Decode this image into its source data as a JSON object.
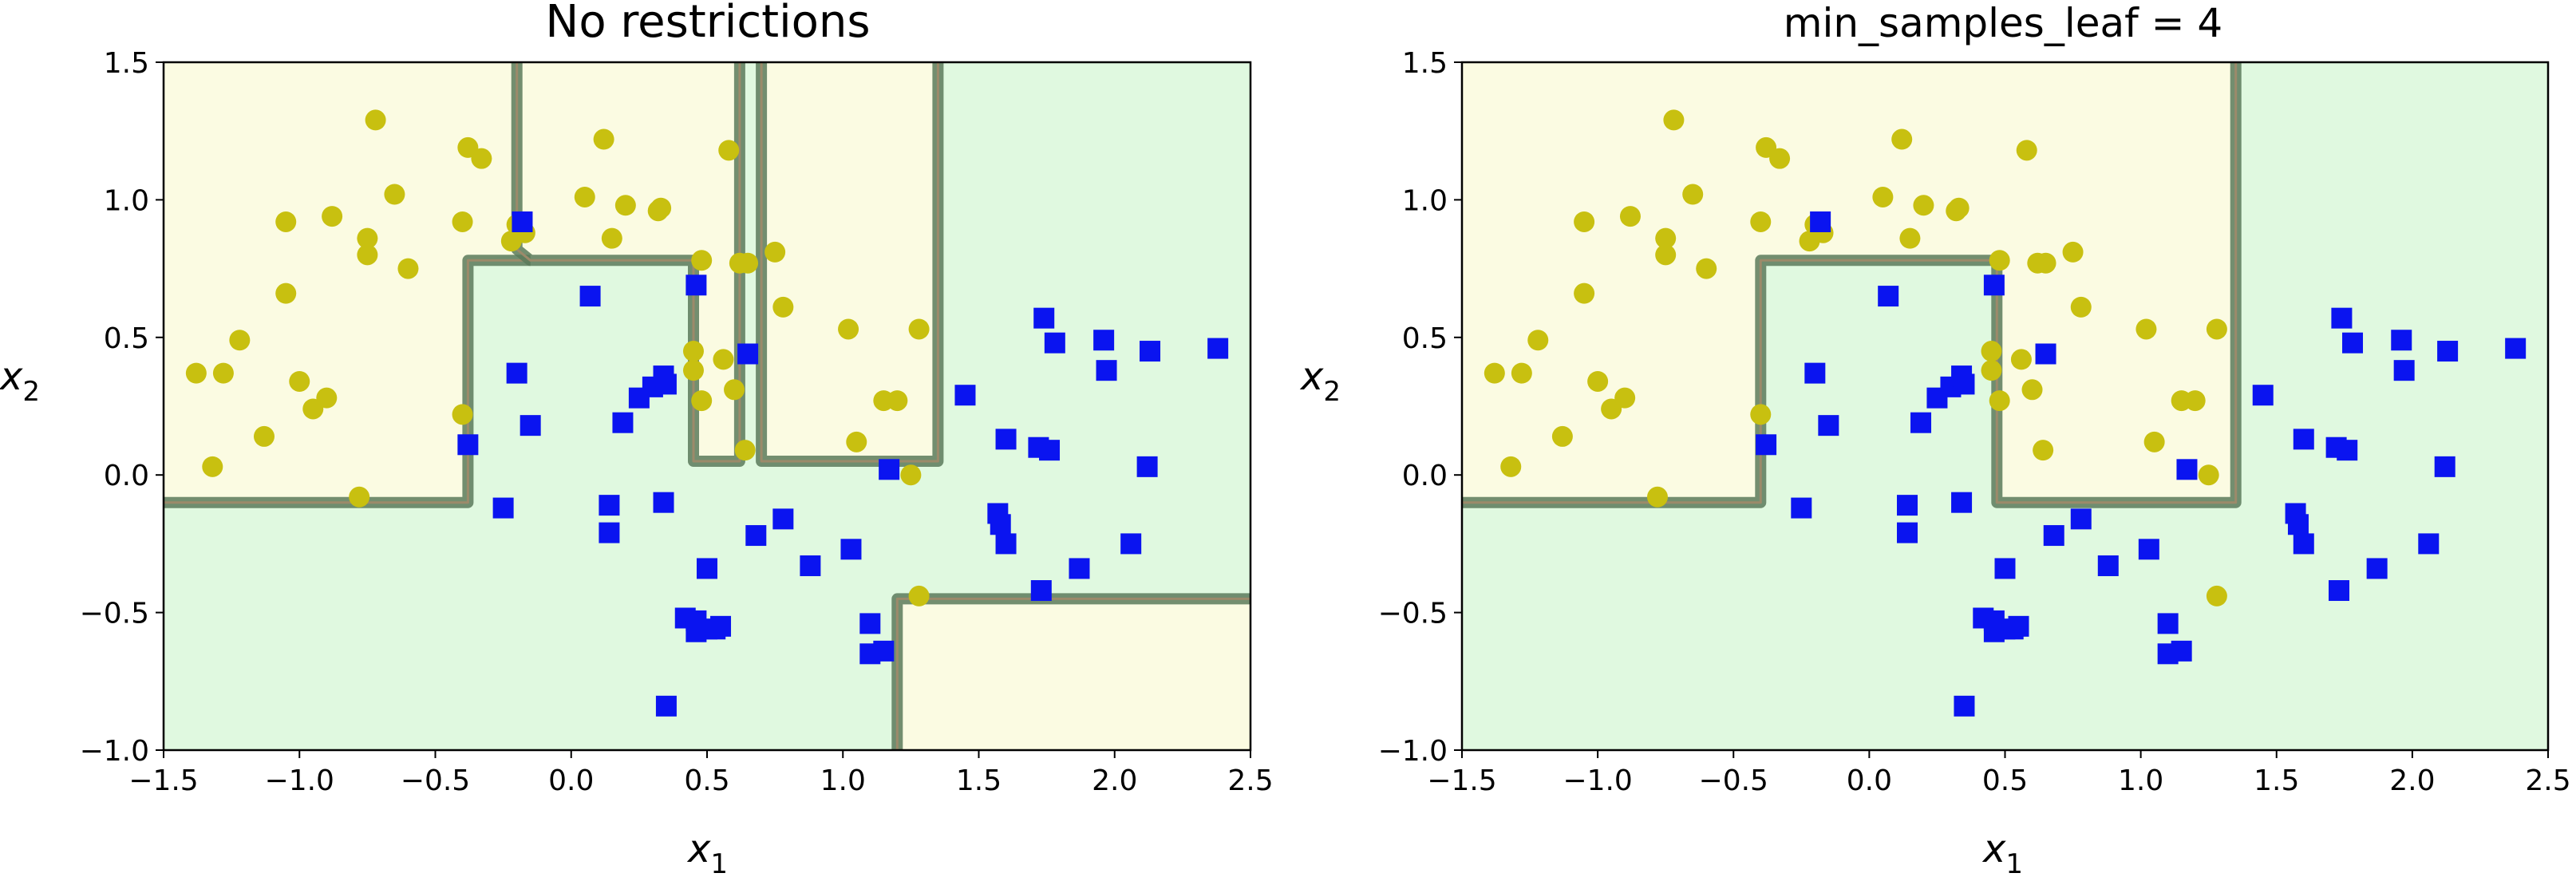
{
  "colors": {
    "class_yellow_region": "#fbfbe2",
    "class_green_region": "#e0f9e0",
    "boundary": "#5a7a5a",
    "boundary_core": "#9c8a6a",
    "point_yellow": "#c8c010",
    "point_blue": "#0a14f0"
  },
  "chart_data": [
    {
      "type": "scatter",
      "title": "No restrictions",
      "xlabel": "x",
      "xlabel_sub": "1",
      "ylabel": "x",
      "ylabel_sub": "2",
      "xlim": [
        -1.5,
        2.5
      ],
      "ylim": [
        -1.0,
        1.5
      ],
      "xticks": [
        -1.5,
        -1.0,
        -0.5,
        0.0,
        0.5,
        1.0,
        1.5,
        2.0,
        2.5
      ],
      "xtick_labels": [
        "−1.5",
        "−1.0",
        "−0.5",
        "0.0",
        "0.5",
        "1.0",
        "1.5",
        "2.0",
        "2.5"
      ],
      "yticks": [
        1.5,
        1.0,
        0.5,
        0.0,
        -0.5,
        -1.0
      ],
      "ytick_labels": [
        "1.5",
        "1.0",
        "0.5",
        "0.0",
        "−0.5",
        "−1.0"
      ],
      "regions": [
        {
          "class": "yellow",
          "polygon": [
            [
              -1.5,
              1.5
            ],
            [
              -0.2,
              1.5
            ],
            [
              -0.2,
              0.8
            ],
            [
              -0.38,
              0.78
            ],
            [
              -0.38,
              -0.1
            ],
            [
              -1.5,
              -0.1
            ]
          ]
        },
        {
          "class": "yellow",
          "polygon": [
            [
              -0.2,
              1.5
            ],
            [
              0.62,
              1.5
            ],
            [
              0.62,
              0.05
            ],
            [
              0.45,
              0.05
            ],
            [
              0.45,
              0.78
            ],
            [
              -0.15,
              0.78
            ],
            [
              -0.2,
              0.8
            ]
          ]
        },
        {
          "class": "yellow",
          "polygon": [
            [
              0.7,
              1.5
            ],
            [
              1.35,
              1.5
            ],
            [
              1.35,
              0.05
            ],
            [
              0.7,
              0.05
            ]
          ]
        },
        {
          "class": "yellow",
          "polygon": [
            [
              1.2,
              -0.45
            ],
            [
              2.5,
              -0.45
            ],
            [
              2.5,
              -1.0
            ],
            [
              1.2,
              -1.0
            ]
          ]
        }
      ],
      "boundaries": [
        [
          [
            -1.5,
            -0.1
          ],
          [
            -0.38,
            -0.1
          ],
          [
            -0.38,
            0.78
          ],
          [
            -0.15,
            0.78
          ]
        ],
        [
          [
            -0.2,
            1.5
          ],
          [
            -0.2,
            0.82
          ],
          [
            -0.15,
            0.78
          ],
          [
            0.45,
            0.78
          ],
          [
            0.45,
            0.05
          ],
          [
            0.62,
            0.05
          ],
          [
            0.62,
            1.5
          ]
        ],
        [
          [
            0.7,
            1.5
          ],
          [
            0.7,
            0.05
          ],
          [
            1.35,
            0.05
          ],
          [
            1.35,
            1.5
          ]
        ],
        [
          [
            1.2,
            -1.0
          ],
          [
            1.2,
            -0.45
          ],
          [
            2.5,
            -0.45
          ]
        ]
      ],
      "series": [
        {
          "marker": "circle",
          "color": "#c8c010",
          "x": [
            -1.38,
            -1.32,
            -1.22,
            -1.28,
            -1.05,
            -1.05,
            -1.0,
            -0.95,
            -0.9,
            -0.88,
            -0.75,
            -0.75,
            -0.72,
            -0.65,
            -0.6,
            -0.78,
            -1.13,
            -0.4,
            -0.38,
            -0.33,
            -0.4,
            -0.22,
            -0.2,
            -0.17,
            0.05,
            0.12,
            0.15,
            0.2,
            0.32,
            0.33,
            0.48,
            0.45,
            0.45,
            0.48,
            0.56,
            0.58,
            0.62,
            0.6,
            0.64,
            0.65,
            0.75,
            0.78,
            1.02,
            1.05,
            1.15,
            1.2,
            1.28,
            1.28,
            1.25
          ],
          "y": [
            0.37,
            0.03,
            0.49,
            0.37,
            0.66,
            0.92,
            0.34,
            0.24,
            0.28,
            0.94,
            0.86,
            0.8,
            1.29,
            1.02,
            0.75,
            -0.08,
            0.14,
            0.22,
            1.19,
            1.15,
            0.92,
            0.85,
            0.91,
            0.88,
            1.01,
            1.22,
            0.86,
            0.98,
            0.96,
            0.97,
            0.78,
            0.38,
            0.45,
            0.27,
            0.42,
            1.18,
            0.77,
            0.31,
            0.09,
            0.77,
            0.81,
            0.61,
            0.53,
            0.12,
            0.27,
            0.27,
            0.53,
            -0.44,
            0.0
          ],
          "series_hint": "class 0"
        },
        {
          "marker": "square",
          "color": "#0a14f0",
          "x": [
            -0.38,
            -0.25,
            -0.18,
            -0.15,
            -0.2,
            0.07,
            0.14,
            0.14,
            0.19,
            0.25,
            0.3,
            0.34,
            0.34,
            0.35,
            0.42,
            0.46,
            0.46,
            0.5,
            0.5,
            0.53,
            0.55,
            0.46,
            0.65,
            0.68,
            0.78,
            0.88,
            1.03,
            1.1,
            1.1,
            1.15,
            1.17,
            1.45,
            1.57,
            1.58,
            1.6,
            1.6,
            1.73,
            1.74,
            1.76,
            1.78,
            1.87,
            1.96,
            1.97,
            2.06,
            2.13,
            2.12,
            2.38,
            1.72,
            0.35
          ],
          "y": [
            0.11,
            -0.12,
            0.92,
            0.18,
            0.37,
            0.65,
            -0.11,
            -0.21,
            0.19,
            0.28,
            0.32,
            -0.1,
            0.36,
            -0.84,
            -0.52,
            -0.53,
            -0.57,
            -0.56,
            -0.34,
            -0.56,
            -0.55,
            0.69,
            0.44,
            -0.22,
            -0.16,
            -0.33,
            -0.27,
            -0.54,
            -0.65,
            -0.64,
            0.02,
            0.29,
            -0.14,
            -0.18,
            0.13,
            -0.25,
            -0.42,
            0.57,
            0.09,
            0.48,
            -0.34,
            0.49,
            0.38,
            -0.25,
            0.45,
            0.03,
            0.46,
            0.1,
            0.33
          ],
          "series_hint": "class 1"
        }
      ]
    },
    {
      "type": "scatter",
      "title": "min_samples_leaf = 4",
      "xlabel": "x",
      "xlabel_sub": "1",
      "ylabel": "x",
      "ylabel_sub": "2",
      "xlim": [
        -1.5,
        2.5
      ],
      "ylim": [
        -1.0,
        1.5
      ],
      "xticks": [
        -1.5,
        -1.0,
        -0.5,
        0.0,
        0.5,
        1.0,
        1.5,
        2.0,
        2.5
      ],
      "xtick_labels": [
        "−1.5",
        "−1.0",
        "−0.5",
        "0.0",
        "0.5",
        "1.0",
        "1.5",
        "2.0",
        "2.5"
      ],
      "yticks": [
        1.5,
        1.0,
        0.5,
        0.0,
        -0.5,
        -1.0
      ],
      "ytick_labels": [
        "1.5",
        "1.0",
        "0.5",
        "0.0",
        "−0.5",
        "−1.0"
      ],
      "regions": [
        {
          "class": "yellow",
          "polygon": [
            [
              -1.5,
              1.5
            ],
            [
              1.35,
              1.5
            ],
            [
              1.35,
              -0.1
            ],
            [
              0.47,
              -0.1
            ],
            [
              0.47,
              0.78
            ],
            [
              -0.4,
              0.78
            ],
            [
              -0.4,
              -0.1
            ],
            [
              -1.5,
              -0.1
            ]
          ]
        }
      ],
      "boundaries": [
        [
          [
            -1.5,
            -0.1
          ],
          [
            -0.4,
            -0.1
          ],
          [
            -0.4,
            0.78
          ],
          [
            0.47,
            0.78
          ],
          [
            0.47,
            -0.1
          ],
          [
            1.35,
            -0.1
          ],
          [
            1.35,
            1.5
          ]
        ]
      ],
      "series": [
        {
          "marker": "circle",
          "color": "#c8c010",
          "x": [
            -1.38,
            -1.32,
            -1.22,
            -1.28,
            -1.05,
            -1.05,
            -1.0,
            -0.95,
            -0.9,
            -0.88,
            -0.75,
            -0.75,
            -0.72,
            -0.65,
            -0.6,
            -0.78,
            -1.13,
            -0.4,
            -0.38,
            -0.33,
            -0.4,
            -0.22,
            -0.2,
            -0.17,
            0.05,
            0.12,
            0.15,
            0.2,
            0.32,
            0.33,
            0.48,
            0.45,
            0.45,
            0.48,
            0.56,
            0.58,
            0.62,
            0.6,
            0.64,
            0.65,
            0.75,
            0.78,
            1.02,
            1.05,
            1.15,
            1.2,
            1.28,
            1.28,
            1.25
          ],
          "y": [
            0.37,
            0.03,
            0.49,
            0.37,
            0.66,
            0.92,
            0.34,
            0.24,
            0.28,
            0.94,
            0.86,
            0.8,
            1.29,
            1.02,
            0.75,
            -0.08,
            0.14,
            0.22,
            1.19,
            1.15,
            0.92,
            0.85,
            0.91,
            0.88,
            1.01,
            1.22,
            0.86,
            0.98,
            0.96,
            0.97,
            0.78,
            0.38,
            0.45,
            0.27,
            0.42,
            1.18,
            0.77,
            0.31,
            0.09,
            0.77,
            0.81,
            0.61,
            0.53,
            0.12,
            0.27,
            0.27,
            0.53,
            -0.44,
            0.0
          ],
          "series_hint": "class 0"
        },
        {
          "marker": "square",
          "color": "#0a14f0",
          "x": [
            -0.38,
            -0.25,
            -0.18,
            -0.15,
            -0.2,
            0.07,
            0.14,
            0.14,
            0.19,
            0.25,
            0.3,
            0.34,
            0.34,
            0.35,
            0.42,
            0.46,
            0.46,
            0.5,
            0.5,
            0.53,
            0.55,
            0.46,
            0.65,
            0.68,
            0.78,
            0.88,
            1.03,
            1.1,
            1.1,
            1.15,
            1.17,
            1.45,
            1.57,
            1.58,
            1.6,
            1.6,
            1.73,
            1.74,
            1.76,
            1.78,
            1.87,
            1.96,
            1.97,
            2.06,
            2.13,
            2.12,
            2.38,
            1.72,
            0.35
          ],
          "y": [
            0.11,
            -0.12,
            0.92,
            0.18,
            0.37,
            0.65,
            -0.11,
            -0.21,
            0.19,
            0.28,
            0.32,
            -0.1,
            0.36,
            -0.84,
            -0.52,
            -0.53,
            -0.57,
            -0.56,
            -0.34,
            -0.56,
            -0.55,
            0.69,
            0.44,
            -0.22,
            -0.16,
            -0.33,
            -0.27,
            -0.54,
            -0.65,
            -0.64,
            0.02,
            0.29,
            -0.14,
            -0.18,
            0.13,
            -0.25,
            -0.42,
            0.57,
            0.09,
            0.48,
            -0.34,
            0.49,
            0.38,
            -0.25,
            0.45,
            0.03,
            0.46,
            0.1,
            0.33
          ],
          "series_hint": "class 1"
        }
      ]
    }
  ]
}
